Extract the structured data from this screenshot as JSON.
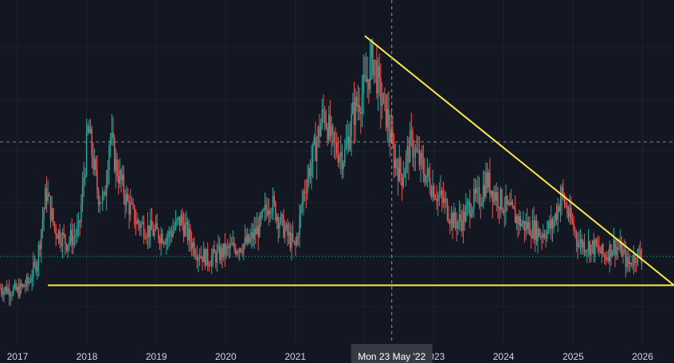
{
  "colors": {
    "background": "#131722",
    "grid": "#1e222d",
    "up": "#26a69a",
    "down": "#ef5350",
    "trendline": "#ffeb3b",
    "crosshair": "#9598a1",
    "price_line": "#26a69a",
    "label_bg": "#363a45",
    "tick_text": "#d1d4dc"
  },
  "crosshair": {
    "label": "Mon 23 May '22",
    "x_date": "2022-05-23"
  },
  "chart_data": {
    "type": "candlestick",
    "interval": "weekly",
    "x_tick_labels": [
      "2017",
      "2018",
      "2019",
      "2020",
      "2021",
      "2023",
      "2024",
      "2025",
      "2026"
    ],
    "xlim": [
      "2016-10-01",
      "2026-06-15"
    ],
    "ylim": [
      0.02,
      1.0
    ],
    "grid": true,
    "series": [
      {
        "values": [
          [
            "2016-10-01",
            0.12
          ],
          [
            "2017-01-01",
            0.11
          ],
          [
            "2017-03-01",
            0.14
          ],
          [
            "2017-04-15",
            0.22
          ],
          [
            "2017-06-01",
            0.46
          ],
          [
            "2017-07-15",
            0.33
          ],
          [
            "2017-09-15",
            0.28
          ],
          [
            "2017-11-20",
            0.32
          ],
          [
            "2018-01-08",
            0.68
          ],
          [
            "2018-02-10",
            0.53
          ],
          [
            "2018-03-01",
            0.45
          ],
          [
            "2018-04-01",
            0.42
          ],
          [
            "2018-05-01",
            0.66
          ],
          [
            "2018-06-01",
            0.55
          ],
          [
            "2018-08-01",
            0.42
          ],
          [
            "2018-09-20",
            0.35
          ],
          [
            "2018-12-01",
            0.32
          ],
          [
            "2019-03-01",
            0.3
          ],
          [
            "2019-05-10",
            0.36
          ],
          [
            "2019-06-20",
            0.3
          ],
          [
            "2019-08-01",
            0.25
          ],
          [
            "2019-10-01",
            0.22
          ],
          [
            "2020-01-01",
            0.25
          ],
          [
            "2020-03-20",
            0.27
          ],
          [
            "2020-05-01",
            0.28
          ],
          [
            "2020-07-01",
            0.34
          ],
          [
            "2020-08-20",
            0.43
          ],
          [
            "2020-10-01",
            0.37
          ],
          [
            "2020-11-15",
            0.31
          ],
          [
            "2021-01-01",
            0.26
          ],
          [
            "2021-02-15",
            0.46
          ],
          [
            "2021-04-15",
            0.61
          ],
          [
            "2021-06-01",
            0.74
          ],
          [
            "2021-07-15",
            0.62
          ],
          [
            "2021-09-15",
            0.58
          ],
          [
            "2021-11-01",
            0.73
          ],
          [
            "2022-01-01",
            0.82
          ],
          [
            "2022-02-15",
            0.93
          ],
          [
            "2022-03-20",
            0.8
          ],
          [
            "2022-05-01",
            0.71
          ],
          [
            "2022-06-01",
            0.58
          ],
          [
            "2022-07-15",
            0.51
          ],
          [
            "2022-09-01",
            0.63
          ],
          [
            "2022-10-15",
            0.56
          ],
          [
            "2022-12-01",
            0.5
          ],
          [
            "2023-01-15",
            0.45
          ],
          [
            "2023-03-01",
            0.41
          ],
          [
            "2023-04-15",
            0.35
          ],
          [
            "2023-06-01",
            0.36
          ],
          [
            "2023-07-15",
            0.42
          ],
          [
            "2023-09-01",
            0.44
          ],
          [
            "2023-10-01",
            0.5
          ],
          [
            "2023-11-15",
            0.45
          ],
          [
            "2024-01-15",
            0.4
          ],
          [
            "2024-03-01",
            0.37
          ],
          [
            "2024-04-15",
            0.34
          ],
          [
            "2024-06-01",
            0.33
          ],
          [
            "2024-07-15",
            0.31
          ],
          [
            "2024-09-15",
            0.34
          ],
          [
            "2024-11-01",
            0.45
          ],
          [
            "2024-12-15",
            0.36
          ],
          [
            "2025-02-01",
            0.28
          ],
          [
            "2025-03-15",
            0.27
          ],
          [
            "2025-05-01",
            0.26
          ],
          [
            "2025-06-15",
            0.23
          ],
          [
            "2025-08-01",
            0.27
          ],
          [
            "2025-09-15",
            0.25
          ],
          [
            "2025-10-15",
            0.2
          ],
          [
            "2025-12-01",
            0.24
          ],
          [
            "2026-01-01",
            0.23
          ]
        ]
      }
    ],
    "trendlines": [
      {
        "kind": "support",
        "from": [
          "2017-06-10",
          0.13
        ],
        "to": [
          "2026-06-15",
          0.13
        ]
      },
      {
        "kind": "resistance",
        "from": [
          "2022-01-01",
          1.0
        ],
        "to": [
          "2026-06-15",
          0.13
        ]
      }
    ],
    "horizontal_levels": [
      {
        "style": "dashed",
        "y": 0.63
      },
      {
        "style": "dotted",
        "y": 0.23
      }
    ]
  }
}
